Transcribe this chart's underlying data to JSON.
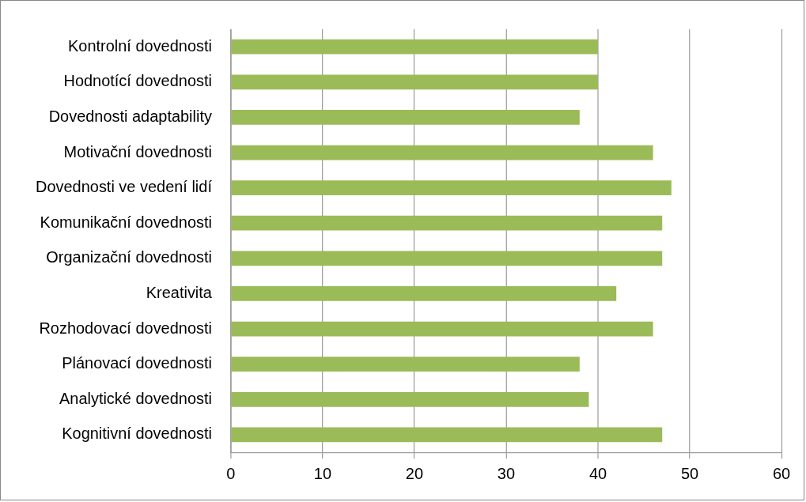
{
  "chart_data": {
    "type": "bar",
    "orientation": "horizontal",
    "categories": [
      "Kontrolní dovednosti",
      "Hodnotící dovednosti",
      "Dovednosti adaptability",
      "Motivační dovednosti",
      "Dovednosti ve vedení lidí",
      "Komunikační dovednosti",
      "Organizační dovednosti",
      "Kreativita",
      "Rozhodovací dovednosti",
      "Plánovací dovednosti",
      "Analytické dovednosti",
      "Kognitivní dovednosti"
    ],
    "values": [
      40,
      40,
      38,
      46,
      48,
      47,
      47,
      42,
      46,
      38,
      39,
      47
    ],
    "color": "#9bbb59",
    "xlim": [
      0,
      60
    ],
    "xticks": [
      0,
      10,
      20,
      30,
      40,
      50,
      60
    ],
    "grid": "x",
    "legend": false
  }
}
